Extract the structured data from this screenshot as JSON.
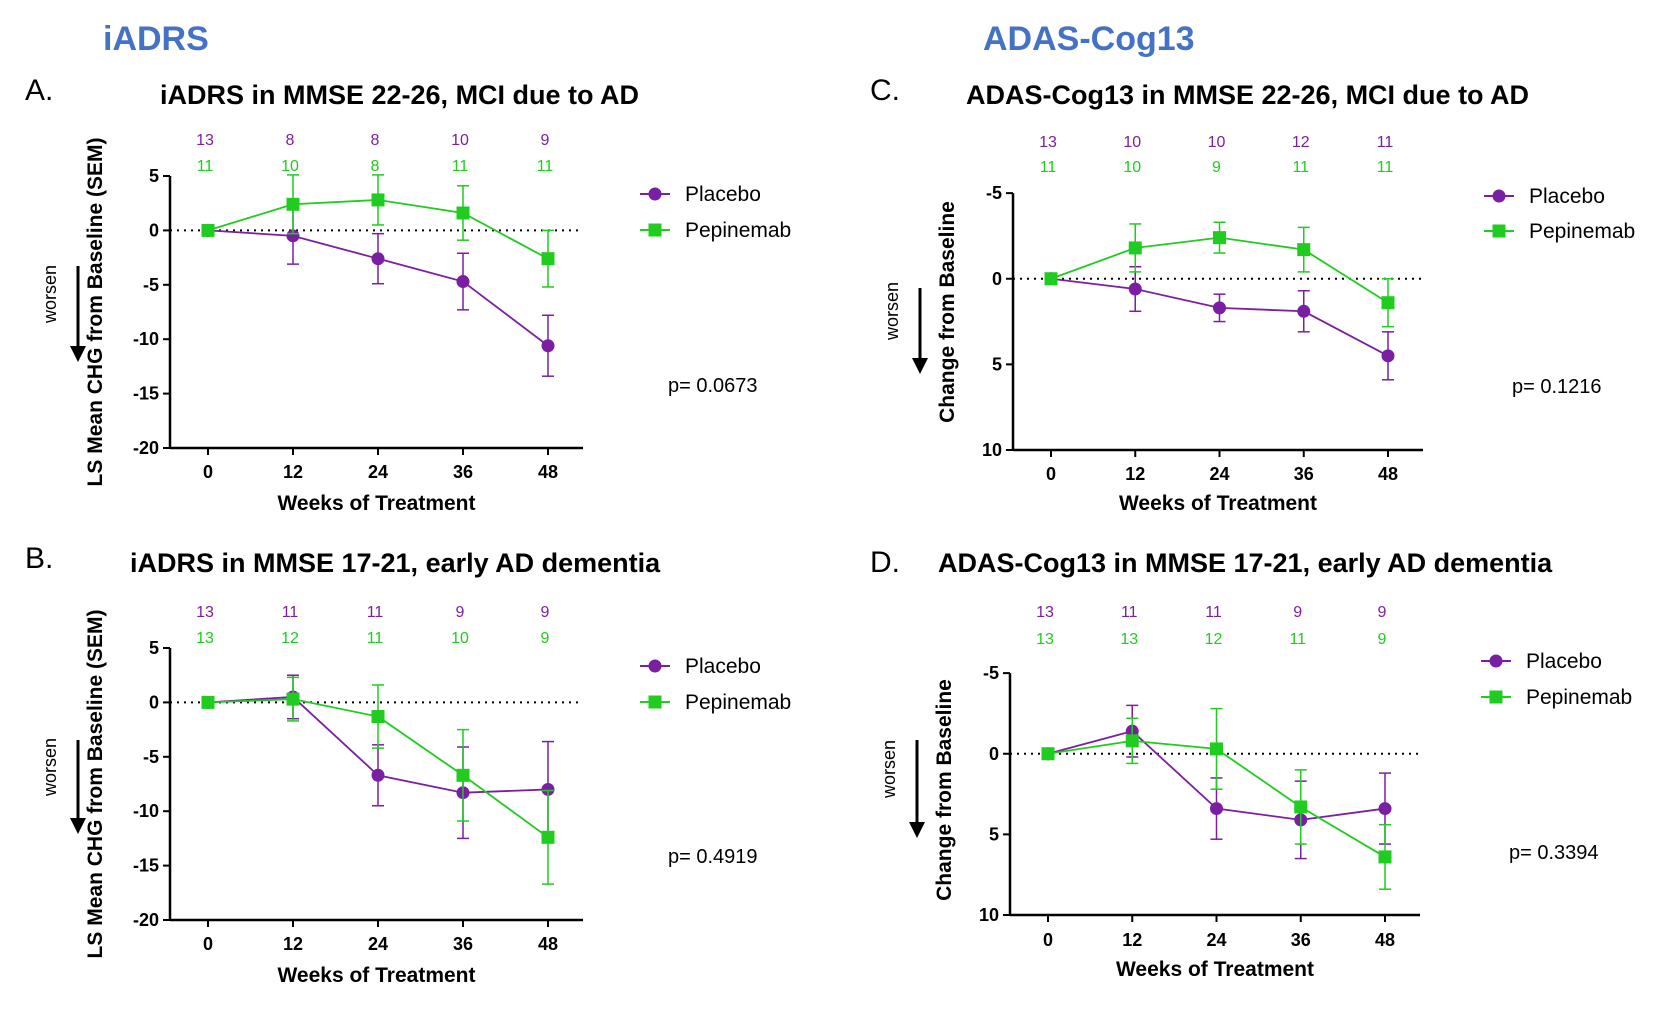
{
  "sections": [
    {
      "title": "iADRS"
    },
    {
      "title": "ADAS-Cog13"
    }
  ],
  "colors": {
    "placebo": "#7B1FA2",
    "pepinemab": "#1FCC1F",
    "section_title": "#4472C4"
  },
  "chart_data": [
    {
      "type": "line",
      "letter": "A.",
      "title": "iADRS in MMSE 22-26, MCI due to AD",
      "xlabel": "Weeks of Treatment",
      "ylabel": "LS Mean CHG from Baseline (SEM)",
      "x": [
        0,
        12,
        24,
        36,
        48
      ],
      "ylim": [
        -20,
        5
      ],
      "yticks": [
        5,
        0,
        -5,
        -10,
        -15,
        -20
      ],
      "y_inverted": false,
      "worsen_label": "worsen",
      "p_value": "p= 0.0673",
      "counts": {
        "placebo": [
          "13",
          "8",
          "8",
          "10",
          "9"
        ],
        "pepinemab": [
          "11",
          "10",
          "8",
          "11",
          "11"
        ]
      },
      "series": [
        {
          "name": "Placebo",
          "marker": "circle",
          "values": [
            0,
            -0.5,
            -2.6,
            -4.7,
            -10.6
          ],
          "sem": [
            0,
            2.6,
            2.3,
            2.6,
            2.8
          ]
        },
        {
          "name": "Pepinemab",
          "marker": "square",
          "values": [
            0,
            2.4,
            2.8,
            1.6,
            -2.6
          ],
          "sem": [
            0,
            2.7,
            2.3,
            2.5,
            2.6
          ]
        }
      ],
      "legend_position": "right"
    },
    {
      "type": "line",
      "letter": "B.",
      "title": "iADRS in MMSE 17-21, early AD dementia",
      "xlabel": "Weeks of Treatment",
      "ylabel": "LS Mean CHG from Baseline (SEM)",
      "x": [
        0,
        12,
        24,
        36,
        48
      ],
      "ylim": [
        -20,
        5
      ],
      "yticks": [
        5,
        0,
        -5,
        -10,
        -15,
        -20
      ],
      "y_inverted": false,
      "worsen_label": "worsen",
      "p_value": "p= 0.4919",
      "counts": {
        "placebo": [
          "13",
          "11",
          "11",
          "9",
          "9"
        ],
        "pepinemab": [
          "13",
          "12",
          "11",
          "10",
          "9"
        ]
      },
      "series": [
        {
          "name": "Placebo",
          "marker": "circle",
          "values": [
            0,
            0.5,
            -6.7,
            -8.3,
            -8.0
          ],
          "sem": [
            0,
            2.0,
            2.8,
            4.2,
            4.4
          ]
        },
        {
          "name": "Pepinemab",
          "marker": "square",
          "values": [
            0,
            0.3,
            -1.3,
            -6.7,
            -12.4
          ],
          "sem": [
            0,
            2.0,
            2.9,
            4.2,
            4.3
          ]
        }
      ],
      "legend_position": "right"
    },
    {
      "type": "line",
      "letter": "C.",
      "title": "ADAS-Cog13 in MMSE 22-26, MCI due to AD",
      "xlabel": "Weeks of Treatment",
      "ylabel": "Change from Baseline",
      "x": [
        0,
        12,
        24,
        36,
        48
      ],
      "ylim": [
        -6,
        10
      ],
      "yticks": [
        -5,
        0,
        5,
        10
      ],
      "y_inverted": true,
      "worsen_label": "worsen",
      "p_value": "p= 0.1216",
      "counts": {
        "placebo": [
          "13",
          "10",
          "10",
          "12",
          "11"
        ],
        "pepinemab": [
          "11",
          "10",
          "9",
          "11",
          "11"
        ]
      },
      "series": [
        {
          "name": "Placebo",
          "marker": "circle",
          "values": [
            0,
            0.6,
            1.7,
            1.9,
            4.5
          ],
          "sem": [
            0,
            1.3,
            0.8,
            1.2,
            1.4
          ]
        },
        {
          "name": "Pepinemab",
          "marker": "square",
          "values": [
            0,
            -1.8,
            -2.4,
            -1.7,
            1.4
          ],
          "sem": [
            0,
            1.4,
            0.9,
            1.3,
            1.4
          ]
        }
      ],
      "legend_position": "right"
    },
    {
      "type": "line",
      "letter": "D.",
      "title": "ADAS-Cog13 in MMSE 17-21, early AD dementia",
      "xlabel": "Weeks of Treatment",
      "ylabel": "Change from Baseline",
      "x": [
        0,
        12,
        24,
        36,
        48
      ],
      "ylim": [
        -6,
        10
      ],
      "yticks": [
        -5,
        0,
        5,
        10
      ],
      "y_inverted": true,
      "worsen_label": "worsen",
      "p_value": "p= 0.3394",
      "counts": {
        "placebo": [
          "13",
          "11",
          "11",
          "9",
          "9"
        ],
        "pepinemab": [
          "13",
          "13",
          "12",
          "11",
          "9"
        ]
      },
      "series": [
        {
          "name": "Placebo",
          "marker": "circle",
          "values": [
            0,
            -1.4,
            3.4,
            4.1,
            3.4
          ],
          "sem": [
            0,
            1.6,
            1.9,
            2.4,
            2.2
          ]
        },
        {
          "name": "Pepinemab",
          "marker": "square",
          "values": [
            0,
            -0.8,
            -0.3,
            3.3,
            6.4
          ],
          "sem": [
            0,
            1.4,
            2.5,
            2.3,
            2.0
          ]
        }
      ],
      "legend_position": "right"
    }
  ]
}
